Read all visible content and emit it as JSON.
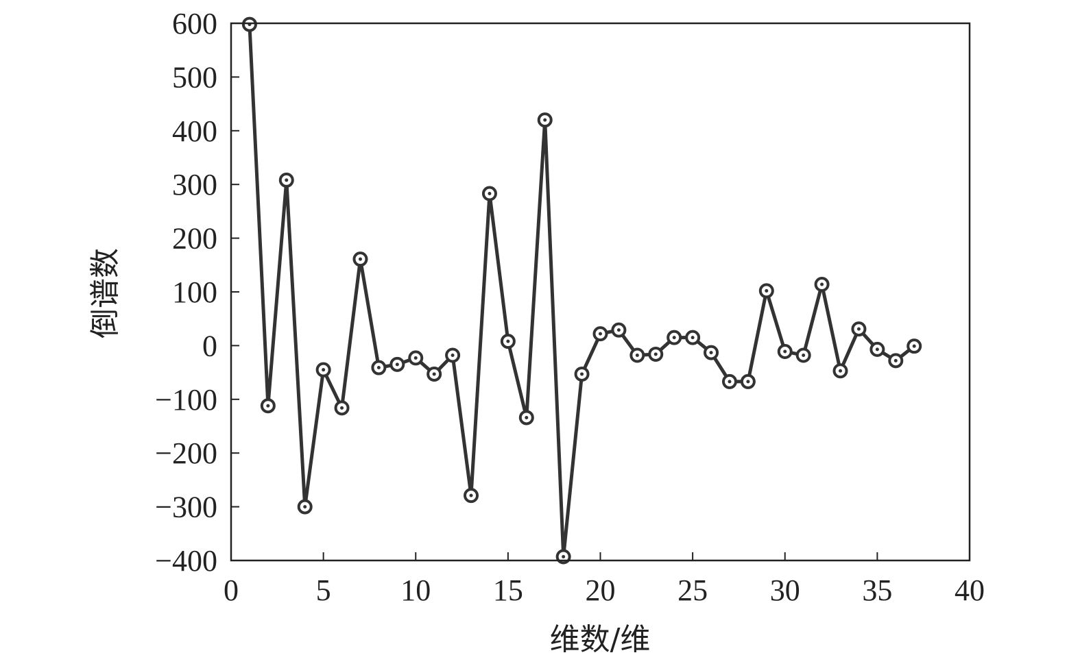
{
  "chart_data": {
    "type": "line",
    "title": "",
    "xlabel": "维数/维",
    "ylabel": "倒谱数",
    "xlim": [
      0,
      40
    ],
    "ylim": [
      -400,
      600
    ],
    "x_ticks": [
      0,
      5,
      10,
      15,
      20,
      25,
      30,
      35,
      40
    ],
    "y_ticks": [
      600,
      500,
      400,
      300,
      200,
      100,
      0,
      -100,
      -200,
      -300,
      -400
    ],
    "grid": false,
    "legend": "none",
    "colors": {
      "line": "#333333",
      "marker_stroke": "#333333",
      "marker_fill": "#ffffff",
      "axis": "#222222"
    },
    "series": [
      {
        "x": [
          1,
          2,
          3,
          4,
          5,
          6,
          7,
          8,
          9,
          10,
          11,
          12,
          13,
          14,
          15,
          16,
          17,
          18,
          19,
          20,
          21,
          22,
          23,
          24,
          25,
          26,
          27,
          28,
          29,
          30,
          31,
          32,
          33,
          34,
          35,
          36,
          37
        ],
        "values": [
          598,
          -112,
          308,
          -300,
          -45,
          -116,
          161,
          -41,
          -35,
          -23,
          -53,
          -18,
          -279,
          283,
          8,
          -134,
          420,
          -393,
          -53,
          22,
          29,
          -18,
          -16,
          15,
          15,
          -13,
          -67,
          -67,
          102,
          -11,
          -18,
          114,
          -47,
          31,
          -7,
          -28,
          -1
        ]
      }
    ]
  }
}
